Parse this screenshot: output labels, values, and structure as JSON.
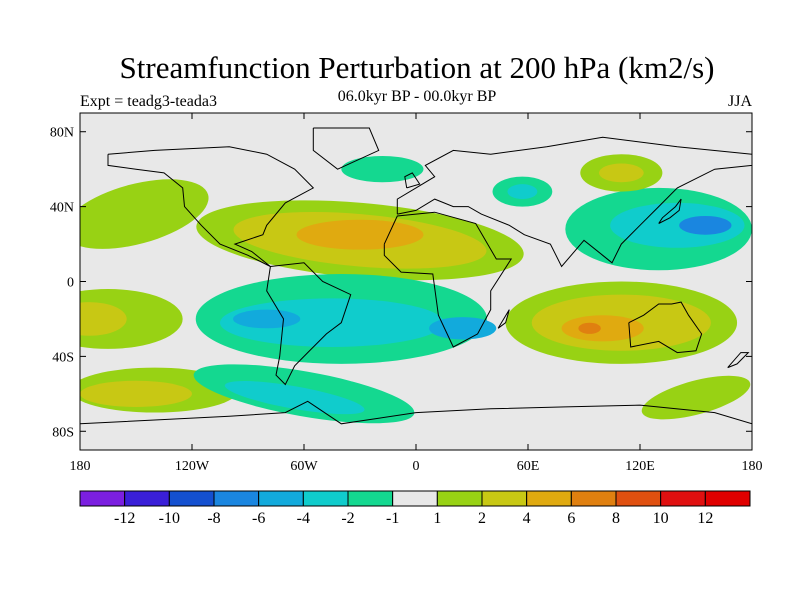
{
  "title": "Streamfunction Perturbation at 200 hPa (km2/s)",
  "expt_label": "Expt = teadg3-teada3",
  "subtitle": "06.0kyr BP - 00.0kyr BP",
  "season": "JJA",
  "lat_ticks": [
    "80N",
    "40N",
    "0",
    "40S",
    "80S"
  ],
  "lat_values": [
    80,
    40,
    0,
    -40,
    -80
  ],
  "lon_ticks": [
    "180",
    "120W",
    "60W",
    "0",
    "60E",
    "120E",
    "180"
  ],
  "lon_values": [
    -180,
    -120,
    -60,
    0,
    60,
    120,
    180
  ],
  "colorbar": {
    "labels": [
      "-12",
      "-10",
      "-8",
      "-6",
      "-4",
      "-2",
      "-1",
      "1",
      "2",
      "4",
      "6",
      "8",
      "10",
      "12"
    ],
    "colors": [
      "#7b1fe0",
      "#3a1fd8",
      "#1450d0",
      "#1a86e0",
      "#12aadc",
      "#10cccc",
      "#14d890",
      "#e8e8e8",
      "#98d214",
      "#c8c814",
      "#e0aa10",
      "#e08010",
      "#e05010",
      "#e01010",
      "#e00000"
    ]
  },
  "fields": [
    {
      "name": "north-pacific-yellow",
      "lon": -150,
      "lat": 38,
      "rx": 32,
      "ry": 10,
      "rot": -20,
      "level": 9
    },
    {
      "name": "north-pacific-green",
      "lon": -150,
      "lat": 36,
      "rx": 40,
      "ry": 16,
      "rot": -15,
      "level": 8
    },
    {
      "name": "tropical-atlantic-green",
      "lon": -30,
      "lat": 22,
      "rx": 88,
      "ry": 20,
      "rot": 5,
      "level": 8
    },
    {
      "name": "tropical-atlantic-yellow",
      "lon": -30,
      "lat": 22,
      "rx": 68,
      "ry": 14,
      "rot": 5,
      "level": 9
    },
    {
      "name": "tropical-atlantic-orange",
      "lon": -30,
      "lat": 25,
      "rx": 34,
      "ry": 8,
      "rot": 0,
      "level": 10
    },
    {
      "name": "west-pacific-green",
      "lon": 130,
      "lat": 28,
      "rx": 50,
      "ry": 22,
      "rot": 0,
      "level": 6
    },
    {
      "name": "west-pacific-cyan",
      "lon": 140,
      "lat": 30,
      "rx": 36,
      "ry": 12,
      "rot": 0,
      "level": 5
    },
    {
      "name": "west-pacific-blue",
      "lon": 155,
      "lat": 30,
      "rx": 14,
      "ry": 5,
      "rot": 0,
      "level": 3
    },
    {
      "name": "siberia-green",
      "lon": 110,
      "lat": 58,
      "rx": 22,
      "ry": 10,
      "rot": 0,
      "level": 8
    },
    {
      "name": "siberia-yellow",
      "lon": 110,
      "lat": 58,
      "rx": 12,
      "ry": 5,
      "rot": 0,
      "level": 9
    },
    {
      "name": "caspian-green",
      "lon": 57,
      "lat": 48,
      "rx": 16,
      "ry": 8,
      "rot": 0,
      "level": 6
    },
    {
      "name": "caspian-cyan",
      "lon": 57,
      "lat": 48,
      "rx": 8,
      "ry": 4,
      "rot": 0,
      "level": 5
    },
    {
      "name": "north-atlantic-green",
      "lon": -18,
      "lat": 60,
      "rx": 22,
      "ry": 7,
      "rot": 0,
      "level": 6
    },
    {
      "name": "south-atlantic-green",
      "lon": -40,
      "lat": -20,
      "rx": 78,
      "ry": 24,
      "rot": 0,
      "level": 6
    },
    {
      "name": "south-atlantic-cyan",
      "lon": -45,
      "lat": -22,
      "rx": 60,
      "ry": 13,
      "rot": 0,
      "level": 5
    },
    {
      "name": "south-atlantic-blue",
      "lon": -80,
      "lat": -20,
      "rx": 18,
      "ry": 5,
      "rot": 0,
      "level": 4
    },
    {
      "name": "africa-blue",
      "lon": 25,
      "lat": -25,
      "rx": 18,
      "ry": 6,
      "rot": 0,
      "level": 4
    },
    {
      "name": "south-pacific-green",
      "lon": 110,
      "lat": -22,
      "rx": 62,
      "ry": 22,
      "rot": 0,
      "level": 8
    },
    {
      "name": "south-pacific-yellow",
      "lon": 110,
      "lat": -22,
      "rx": 48,
      "ry": 15,
      "rot": 0,
      "level": 9
    },
    {
      "name": "south-pacific-orange",
      "lon": 100,
      "lat": -25,
      "rx": 22,
      "ry": 7,
      "rot": 0,
      "level": 10
    },
    {
      "name": "south-pacific-dark-orange",
      "lon": 93,
      "lat": -25,
      "rx": 6,
      "ry": 3,
      "rot": 0,
      "level": 11
    },
    {
      "name": "east-pacific-green",
      "lon": -165,
      "lat": -20,
      "rx": 40,
      "ry": 16,
      "rot": 0,
      "level": 8
    },
    {
      "name": "east-pacific-yellow",
      "lon": -175,
      "lat": -20,
      "rx": 20,
      "ry": 9,
      "rot": 0,
      "level": 9
    },
    {
      "name": "southern-ocean-green",
      "lon": -140,
      "lat": -58,
      "rx": 45,
      "ry": 12,
      "rot": 0,
      "level": 8
    },
    {
      "name": "southern-ocean-yellow",
      "lon": -150,
      "lat": -60,
      "rx": 30,
      "ry": 7,
      "rot": 0,
      "level": 9
    },
    {
      "name": "drake-green",
      "lon": -60,
      "lat": -60,
      "rx": 60,
      "ry": 12,
      "rot": 10,
      "level": 6
    },
    {
      "name": "drake-cyan",
      "lon": -65,
      "lat": -62,
      "rx": 38,
      "ry": 6,
      "rot": 10,
      "level": 5
    },
    {
      "name": "southern-indian-green",
      "lon": 150,
      "lat": -62,
      "rx": 30,
      "ry": 9,
      "rot": -15,
      "level": 8
    }
  ]
}
